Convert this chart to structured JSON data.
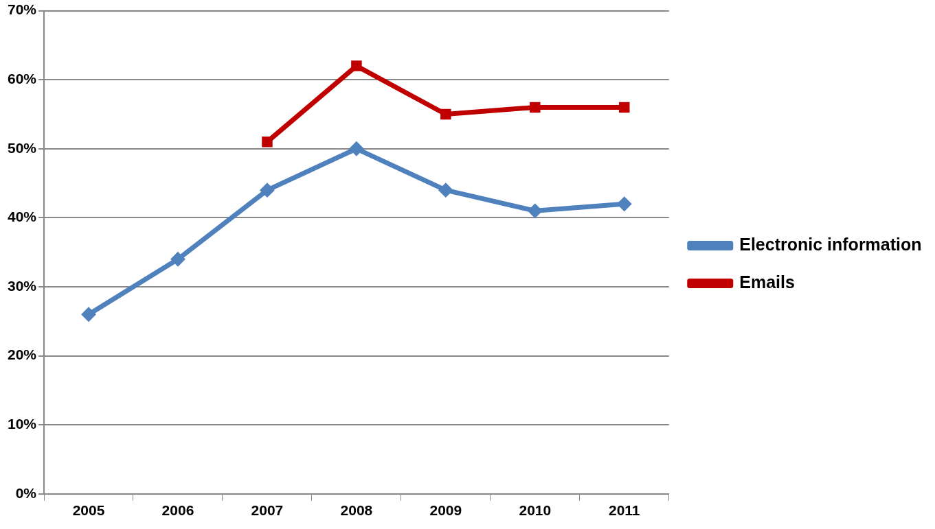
{
  "chart_data": {
    "type": "line",
    "categories": [
      "2005",
      "2006",
      "2007",
      "2008",
      "2009",
      "2010",
      "2011"
    ],
    "series": [
      {
        "name": "Electronic information",
        "color": "#4f81bd",
        "marker": "diamond",
        "values": [
          26,
          34,
          44,
          50,
          44,
          41,
          42
        ]
      },
      {
        "name": "Emails",
        "color": "#c00000",
        "marker": "square",
        "values": [
          null,
          null,
          51,
          62,
          55,
          56,
          56
        ]
      }
    ],
    "ylim": [
      0,
      70
    ],
    "yticks": [
      {
        "value": 0,
        "label": "0%"
      },
      {
        "value": 10,
        "label": "10%"
      },
      {
        "value": 20,
        "label": "20%"
      },
      {
        "value": 30,
        "label": "30%"
      },
      {
        "value": 40,
        "label": "40%"
      },
      {
        "value": 50,
        "label": "50%"
      },
      {
        "value": 60,
        "label": "60%"
      },
      {
        "value": 70,
        "label": "70%"
      }
    ],
    "grid": "y",
    "legend": "right",
    "line_style": "solid"
  }
}
